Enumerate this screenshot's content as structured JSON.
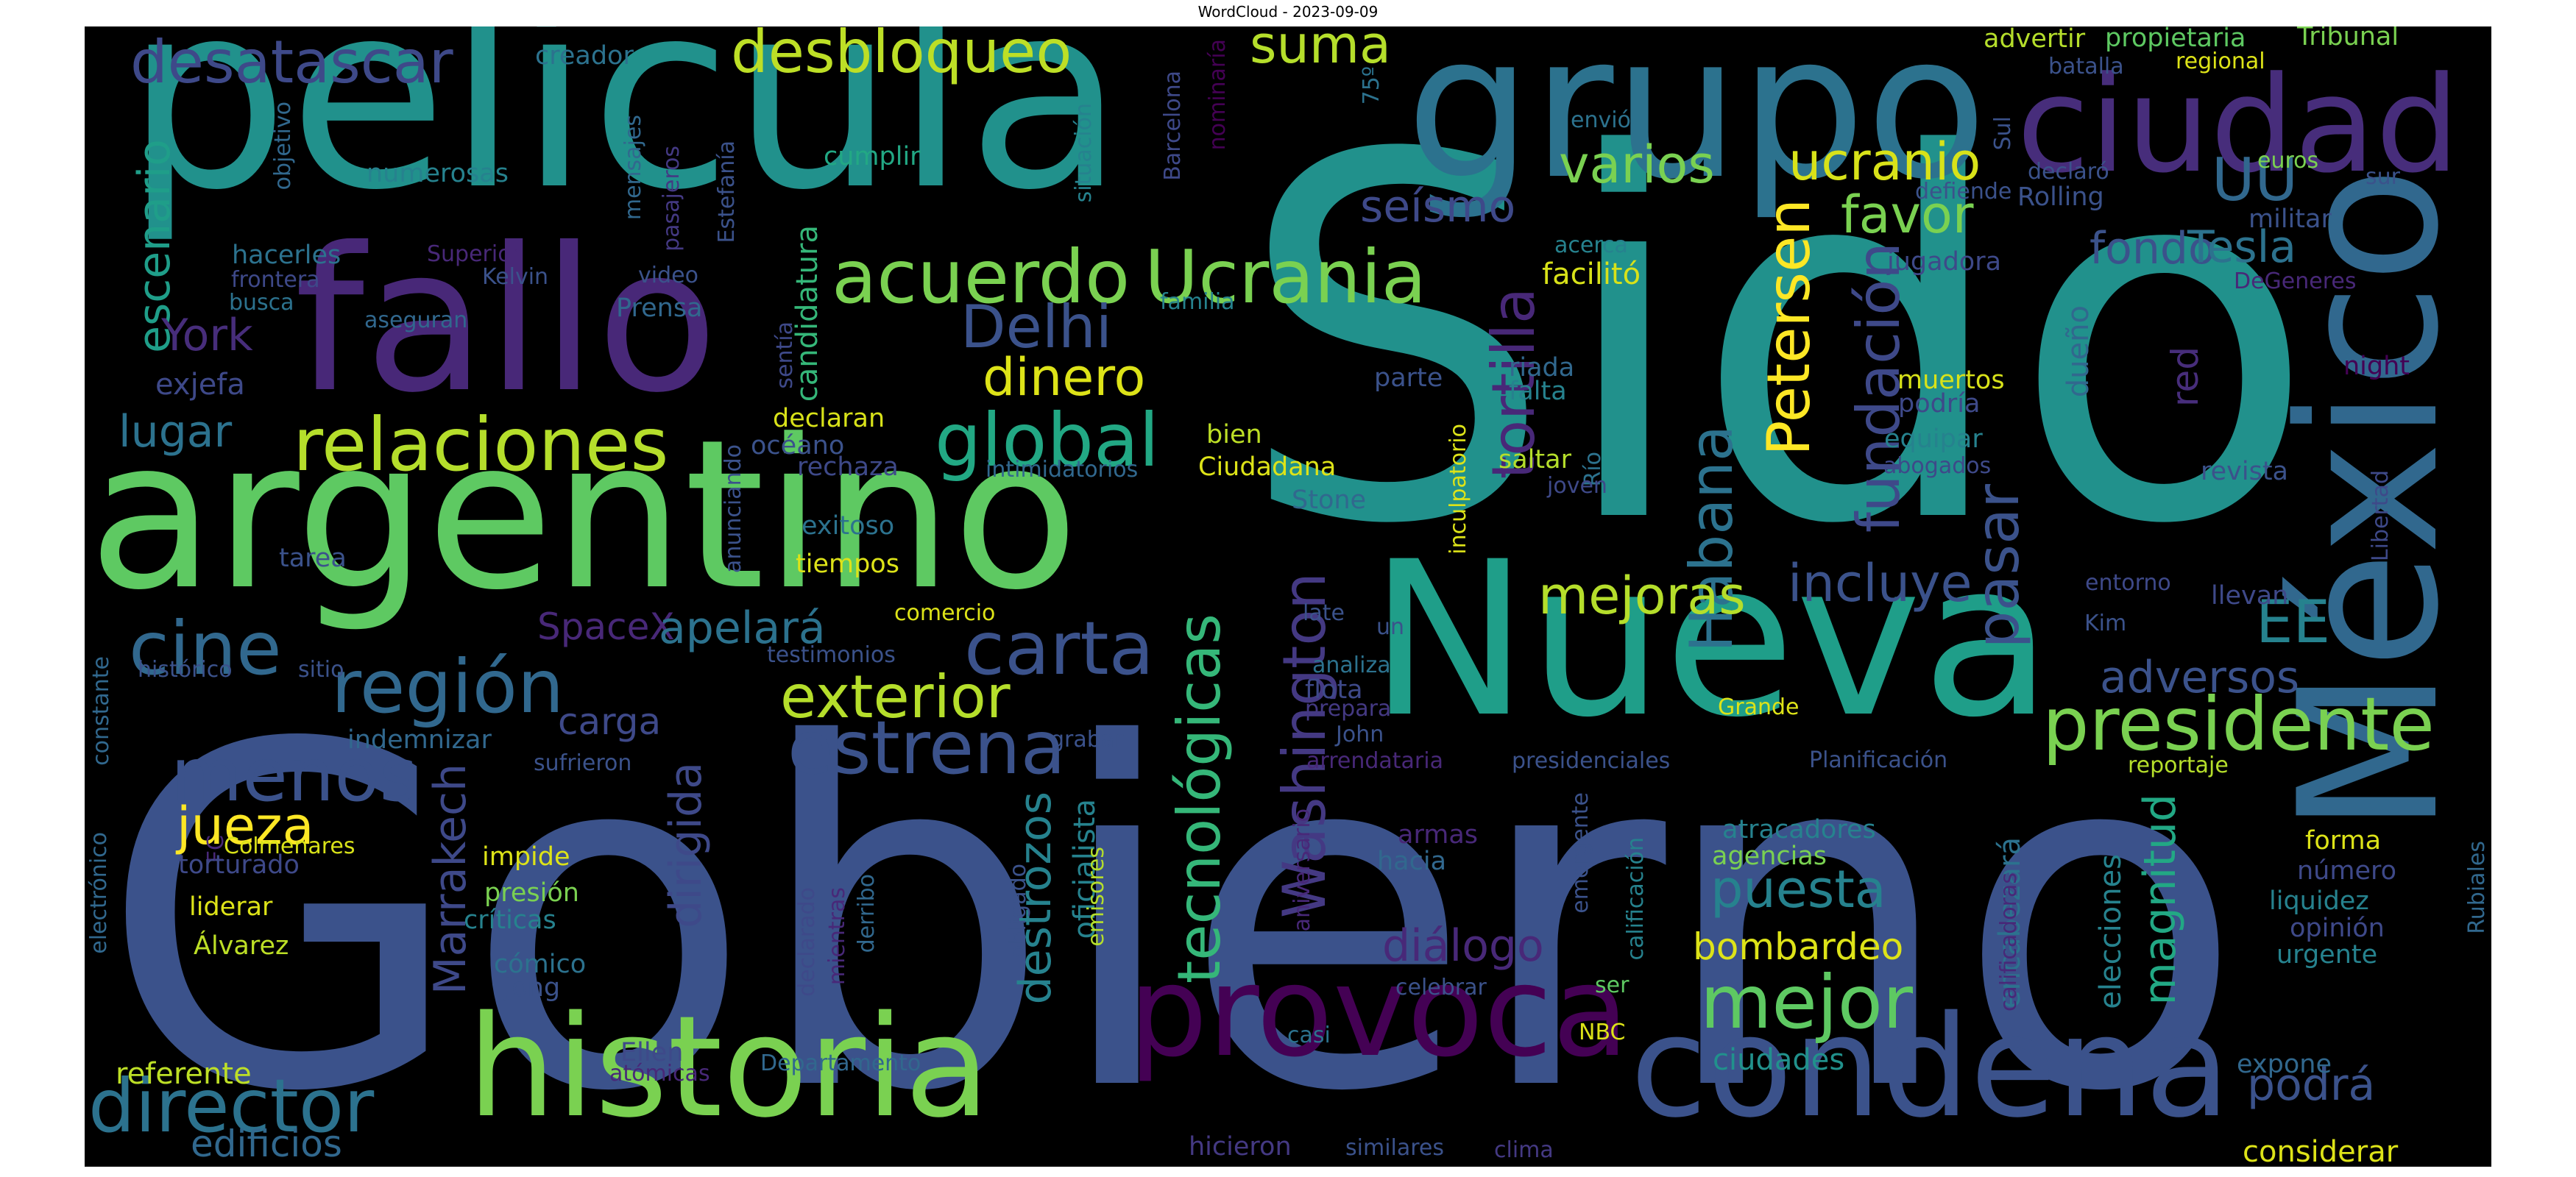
{
  "figure": {
    "title": "WordCloud - 2023-09-09"
  },
  "chart_data": {
    "type": "wordcloud",
    "title": "WordCloud - 2023-09-09",
    "background": "#000000",
    "colormap": "viridis",
    "words": [
      {
        "text": "Gobierno",
        "color": "#3b528b"
      },
      {
        "text": "Sido",
        "color": "#21918c"
      },
      {
        "text": "película",
        "color": "#21918c"
      },
      {
        "text": "argentino",
        "color": "#5ec962"
      },
      {
        "text": "Nueva",
        "color": "#1f9e89"
      },
      {
        "text": "grupo",
        "color": "#2c728e"
      },
      {
        "text": "fallo",
        "color": "#482878"
      },
      {
        "text": "México",
        "color": "#31688e"
      },
      {
        "text": "ciudad",
        "color": "#472d7b"
      },
      {
        "text": "historia",
        "color": "#7ad151"
      },
      {
        "text": "condena",
        "color": "#3b528b"
      },
      {
        "text": "provoca",
        "color": "#440154"
      },
      {
        "text": "relaciones",
        "color": "#b5de2b"
      },
      {
        "text": "acuerdo",
        "color": "#7ad151"
      },
      {
        "text": "Ucrania",
        "color": "#7ad151"
      },
      {
        "text": "región",
        "color": "#31688e"
      },
      {
        "text": "presidente",
        "color": "#7ad151"
      },
      {
        "text": "global",
        "color": "#22a884"
      },
      {
        "text": "carta",
        "color": "#3b528b"
      },
      {
        "text": "estrena",
        "color": "#3b528b"
      },
      {
        "text": "cine",
        "color": "#31688e"
      },
      {
        "text": "menos",
        "color": "#3b528b"
      },
      {
        "text": "mejor",
        "color": "#5ec962"
      },
      {
        "text": "director",
        "color": "#2c728e"
      },
      {
        "text": "exterior",
        "color": "#b5de2b"
      },
      {
        "text": "desbloqueo",
        "color": "#bddf26"
      },
      {
        "text": "desatascar",
        "color": "#3e4989"
      },
      {
        "text": "Delhi",
        "color": "#3b528b"
      },
      {
        "text": "tecnológicas",
        "color": "#35b779"
      },
      {
        "text": "Washington",
        "color": "#443983"
      },
      {
        "text": "fundación",
        "color": "#3e4989"
      },
      {
        "text": "tortilla",
        "color": "#482878"
      },
      {
        "text": "Habana",
        "color": "#2c728e"
      },
      {
        "text": "Petersen",
        "color": "#fde725"
      },
      {
        "text": "pasar",
        "color": "#3b528b"
      },
      {
        "text": "UU",
        "color": "#31688e"
      },
      {
        "text": "EE",
        "color": "#26828e"
      },
      {
        "text": "mejoras",
        "color": "#b5de2b"
      },
      {
        "text": "incluye",
        "color": "#3b528b"
      },
      {
        "text": "puesta",
        "color": "#26828e"
      },
      {
        "text": "jueza",
        "color": "#fde725"
      },
      {
        "text": "dinero",
        "color": "#dde318"
      },
      {
        "text": "varios",
        "color": "#7ad151"
      },
      {
        "text": "ucranio",
        "color": "#d8e219"
      },
      {
        "text": "suma",
        "color": "#b5de2b"
      },
      {
        "text": "favor",
        "color": "#7ad151"
      },
      {
        "text": "seísmo",
        "color": "#3e4989"
      },
      {
        "text": "fondo",
        "color": "#3b528b"
      },
      {
        "text": "Tesla",
        "color": "#2c728e"
      },
      {
        "text": "adversos",
        "color": "#3b528b"
      },
      {
        "text": "podrá",
        "color": "#3b528b"
      },
      {
        "text": "diálogo",
        "color": "#482878"
      },
      {
        "text": "bombardeo",
        "color": "#dde318"
      },
      {
        "text": "magnitud",
        "color": "#22a884"
      },
      {
        "text": "destrozos",
        "color": "#26828e"
      },
      {
        "text": "dirigida",
        "color": "#3e4989"
      },
      {
        "text": "Marrakech",
        "color": "#3e4989"
      },
      {
        "text": "escenario",
        "color": "#1f9e89"
      },
      {
        "text": "York",
        "color": "#472d7b"
      },
      {
        "text": "lugar",
        "color": "#2c728e"
      },
      {
        "text": "SpaceX",
        "color": "#482878"
      },
      {
        "text": "apelará",
        "color": "#2c728e"
      },
      {
        "text": "carga",
        "color": "#3e4989"
      },
      {
        "text": "exjefa",
        "color": "#3e4989"
      },
      {
        "text": "edificios",
        "color": "#31688e"
      },
      {
        "text": "referente",
        "color": "#bddf26"
      },
      {
        "text": "candidatura",
        "color": "#35b779"
      },
      {
        "text": "oficialista",
        "color": "#26828e"
      },
      {
        "text": "dueño",
        "color": "#31688e"
      },
      {
        "text": "red",
        "color": "#472d7b"
      },
      {
        "text": "encabezará",
        "color": "#2c728e"
      },
      {
        "text": "elecciones",
        "color": "#26828e"
      },
      {
        "text": "ciudades",
        "color": "#21918c"
      },
      {
        "text": "facilitó",
        "color": "#d8e219"
      },
      {
        "text": "considerar",
        "color": "#dde318"
      },
      {
        "text": "numerosas",
        "color": "#26828e"
      },
      {
        "text": "cumplir",
        "color": "#22a884"
      },
      {
        "text": "creador",
        "color": "#2c728e"
      },
      {
        "text": "mensajes",
        "color": "#31688e"
      },
      {
        "text": "pasajeros",
        "color": "#443983"
      },
      {
        "text": "objetivo",
        "color": "#31688e"
      },
      {
        "text": "Estefanía",
        "color": "#3b528b"
      },
      {
        "text": "situación",
        "color": "#26828e"
      },
      {
        "text": "Barcelona",
        "color": "#3e4989"
      },
      {
        "text": "nominaría",
        "color": "#440154"
      },
      {
        "text": "75º",
        "color": "#2c728e"
      },
      {
        "text": "envió",
        "color": "#2c728e"
      },
      {
        "text": "hacerles",
        "color": "#2c728e"
      },
      {
        "text": "Superior",
        "color": "#482878"
      },
      {
        "text": "frontera",
        "color": "#3e4989"
      },
      {
        "text": "Kelvin",
        "color": "#3b528b"
      },
      {
        "text": "video",
        "color": "#3b528b"
      },
      {
        "text": "busca",
        "color": "#2c728e"
      },
      {
        "text": "aseguran",
        "color": "#31688e"
      },
      {
        "text": "Prensa",
        "color": "#31688e"
      },
      {
        "text": "sentía",
        "color": "#3e4989"
      },
      {
        "text": "familia",
        "color": "#26828e"
      },
      {
        "text": "declaran",
        "color": "#d8e219"
      },
      {
        "text": "océano",
        "color": "#3b528b"
      },
      {
        "text": "rechaza",
        "color": "#3e4989"
      },
      {
        "text": "intimidatorios",
        "color": "#31688e"
      },
      {
        "text": "Ciudadana",
        "color": "#dde318"
      },
      {
        "text": "bien",
        "color": "#bddf26"
      },
      {
        "text": "anunciando",
        "color": "#3b528b"
      },
      {
        "text": "exitoso",
        "color": "#2c728e"
      },
      {
        "text": "tiempos",
        "color": "#dde318"
      },
      {
        "text": "tarea",
        "color": "#3b528b"
      },
      {
        "text": "comercio",
        "color": "#dde318"
      },
      {
        "text": "testimonios",
        "color": "#3b528b"
      },
      {
        "text": "histórico",
        "color": "#3b528b"
      },
      {
        "text": "sitio",
        "color": "#3b528b"
      },
      {
        "text": "constante",
        "color": "#31688e"
      },
      {
        "text": "indemnizar",
        "color": "#31688e"
      },
      {
        "text": "sufrieron",
        "color": "#3b528b"
      },
      {
        "text": "grabar",
        "color": "#3b528b"
      },
      {
        "text": "FC",
        "color": "#482878"
      },
      {
        "text": "Colmenares",
        "color": "#d8e219"
      },
      {
        "text": "impide",
        "color": "#dde318"
      },
      {
        "text": "presión",
        "color": "#7ad151"
      },
      {
        "text": "críticas",
        "color": "#26828e"
      },
      {
        "text": "cómico",
        "color": "#2c728e"
      },
      {
        "text": "Jong",
        "color": "#3b528b"
      },
      {
        "text": "torturado",
        "color": "#3e4989"
      },
      {
        "text": "liderar",
        "color": "#dde318"
      },
      {
        "text": "Álvarez",
        "color": "#bddf26"
      },
      {
        "text": "electrónico",
        "color": "#31688e"
      },
      {
        "text": "declarado",
        "color": "#3e4989"
      },
      {
        "text": "mientras",
        "color": "#482878"
      },
      {
        "text": "derribo",
        "color": "#31688e"
      },
      {
        "text": "obligado",
        "color": "#3b528b"
      },
      {
        "text": "emisores",
        "color": "#b5de2b"
      },
      {
        "text": "Ellen",
        "color": "#3e4989"
      },
      {
        "text": "atómicas",
        "color": "#482878"
      },
      {
        "text": "Departamento",
        "color": "#31688e"
      },
      {
        "text": "hicieron",
        "color": "#443983"
      },
      {
        "text": "similares",
        "color": "#3b528b"
      },
      {
        "text": "clima",
        "color": "#443983"
      },
      {
        "text": "casi",
        "color": "#2c728e"
      },
      {
        "text": "NBC",
        "color": "#dde318"
      },
      {
        "text": "ser",
        "color": "#5ec962"
      },
      {
        "text": "celebrar",
        "color": "#3b528b"
      },
      {
        "text": "armas",
        "color": "#482878"
      },
      {
        "text": "hacia",
        "color": "#31688e"
      },
      {
        "text": "aniversario",
        "color": "#482878"
      },
      {
        "text": "emergente",
        "color": "#3b528b"
      },
      {
        "text": "calificación",
        "color": "#26828e"
      },
      {
        "text": "calificadoras",
        "color": "#482878"
      },
      {
        "text": "agencias",
        "color": "#7ad151"
      },
      {
        "text": "atracadores",
        "color": "#26828e"
      },
      {
        "text": "arrendataria",
        "color": "#482878"
      },
      {
        "text": "presidenciales",
        "color": "#3b528b"
      },
      {
        "text": "Planificación",
        "color": "#3b528b"
      },
      {
        "text": "reportaje",
        "color": "#b5de2b"
      },
      {
        "text": "forma",
        "color": "#dde318"
      },
      {
        "text": "número",
        "color": "#3e4989"
      },
      {
        "text": "liquidez",
        "color": "#26828e"
      },
      {
        "text": "opinión",
        "color": "#3e4989"
      },
      {
        "text": "urgente",
        "color": "#26828e"
      },
      {
        "text": "Rubiales",
        "color": "#31688e"
      },
      {
        "text": "expone",
        "color": "#31688e"
      },
      {
        "text": "Grande",
        "color": "#dde318"
      },
      {
        "text": "analiza",
        "color": "#2c728e"
      },
      {
        "text": "flota",
        "color": "#3e4989"
      },
      {
        "text": "prepara",
        "color": "#443983"
      },
      {
        "text": "John",
        "color": "#3b528b"
      },
      {
        "text": "late",
        "color": "#3b528b"
      },
      {
        "text": "un",
        "color": "#3b528b"
      },
      {
        "text": "Stone",
        "color": "#31688e"
      },
      {
        "text": "parte",
        "color": "#3b528b"
      },
      {
        "text": "riada",
        "color": "#31688e"
      },
      {
        "text": "falta",
        "color": "#26828e"
      },
      {
        "text": "saltar",
        "color": "#b5de2b"
      },
      {
        "text": "Río",
        "color": "#2c728e"
      },
      {
        "text": "joven",
        "color": "#3e4989"
      },
      {
        "text": "inculpatorio",
        "color": "#dde318"
      },
      {
        "text": "entorno",
        "color": "#3e4989"
      },
      {
        "text": "Kim",
        "color": "#3b528b"
      },
      {
        "text": "llevan",
        "color": "#3e4989"
      },
      {
        "text": "muertos",
        "color": "#d8e219"
      },
      {
        "text": "podría",
        "color": "#3e4989"
      },
      {
        "text": "equipar",
        "color": "#26828e"
      },
      {
        "text": "abogados",
        "color": "#3e4989"
      },
      {
        "text": "revista",
        "color": "#3b528b"
      },
      {
        "text": "Libertad",
        "color": "#3e4989"
      },
      {
        "text": "acerca",
        "color": "#26828e"
      },
      {
        "text": "jugadora",
        "color": "#3e4989"
      },
      {
        "text": "DeGeneres",
        "color": "#482878"
      },
      {
        "text": "night",
        "color": "#440154"
      },
      {
        "text": "defiende",
        "color": "#3b528b"
      },
      {
        "text": "Rolling",
        "color": "#3b528b"
      },
      {
        "text": "militar",
        "color": "#3b528b"
      },
      {
        "text": "declaró",
        "color": "#3b528b"
      },
      {
        "text": "euros",
        "color": "#7ad151"
      },
      {
        "text": "sur",
        "color": "#3b528b"
      },
      {
        "text": "Sul",
        "color": "#3b528b"
      },
      {
        "text": "batalla",
        "color": "#3b528b"
      },
      {
        "text": "regional",
        "color": "#dde318"
      },
      {
        "text": "advertir",
        "color": "#b5de2b"
      },
      {
        "text": "propietaria",
        "color": "#5ec962"
      },
      {
        "text": "Tribunal",
        "color": "#7ad151"
      }
    ]
  }
}
